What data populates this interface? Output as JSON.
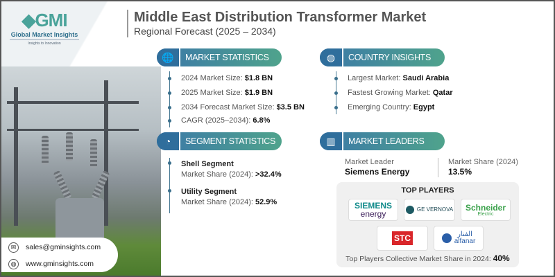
{
  "brand": {
    "logo_text": "GMI",
    "name": "Global Market Insights",
    "tagline": "Insights to Innovation"
  },
  "header": {
    "title": "Middle East Distribution Transformer Market",
    "subtitle": "Regional Forecast (2025 – 2034)"
  },
  "market_statistics": {
    "label": "MARKET STATISTICS",
    "items": [
      {
        "k": "2024 Market Size: ",
        "v": "$1.8 BN"
      },
      {
        "k": "2025 Market Size: ",
        "v": "$1.9 BN"
      },
      {
        "k": "2034 Forecast Market Size: ",
        "v": "$3.5 BN"
      },
      {
        "k": "CAGR (2025–2034): ",
        "v": "6.8%"
      }
    ]
  },
  "country_insights": {
    "label": "COUNTRY INSIGHTS",
    "items": [
      {
        "k": "Largest Market: ",
        "v": "Saudi Arabia"
      },
      {
        "k": "Fastest Growing Market: ",
        "v": "Qatar"
      },
      {
        "k": "Emerging Country: ",
        "v": "Egypt"
      }
    ]
  },
  "segment_statistics": {
    "label": "SEGMENT STATISTICS",
    "items": [
      {
        "h": "Shell Segment",
        "k": "Market Share (2024): ",
        "v": ">32.4%"
      },
      {
        "h": "Utility Segment",
        "k": "Market Share (2024): ",
        "v": "52.9%"
      }
    ]
  },
  "market_leaders": {
    "label": "MARKET LEADERS",
    "leader_label": "Market Leader",
    "leader": "Siemens Energy",
    "share_label": "Market Share (2024)",
    "share": "13.5%"
  },
  "top_players": {
    "title": "TOP PLAYERS",
    "logos": [
      "SIEMENS",
      "energy",
      "GE VERNOVA",
      "Schneider",
      "Electric",
      "STC",
      "الفنار",
      "alfanar"
    ],
    "footer_label": "Top Players Collective Market Share in 2024: ",
    "footer_value": "40%"
  },
  "contact": {
    "email": "sales@gminsights.com",
    "website": "www.gminsights.com"
  }
}
